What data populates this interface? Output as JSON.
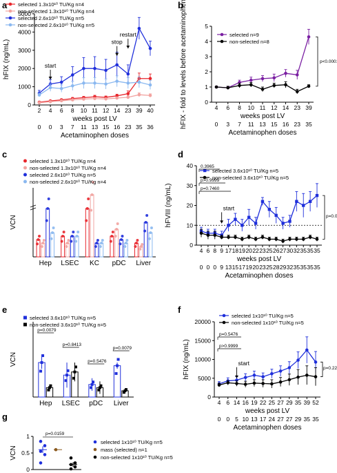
{
  "chart_data": [
    {
      "panel": "a",
      "type": "line",
      "ylabel": "hFIX (ng/mL)",
      "xlabel": "weeks post LV",
      "xlabel2": "Acetaminophen doses",
      "x_ticks": [
        "2",
        "4",
        "6",
        "8",
        "10",
        "11",
        "12",
        "14",
        "23",
        "39",
        "40"
      ],
      "x2_ticks": [
        "0",
        "0",
        "3",
        "7",
        "11",
        "13",
        "15",
        "16",
        "23",
        "35",
        "36"
      ],
      "ylim": [
        0,
        5000
      ],
      "yticks": [
        0,
        1000,
        2000,
        3000,
        4000,
        5000
      ],
      "annotations": [
        {
          "text": "start",
          "x": 1
        },
        {
          "text": "stop",
          "x": 7
        },
        {
          "text": "restart",
          "x": 8
        }
      ],
      "series": [
        {
          "name": "selected 1.3x10¹⁰ TU/Kg n=4",
          "color": "#e8262c",
          "values": [
            150,
            220,
            280,
            350,
            400,
            450,
            420,
            500,
            620,
            1450,
            1450
          ],
          "err": [
            30,
            40,
            50,
            60,
            70,
            80,
            70,
            90,
            150,
            300,
            250
          ]
        },
        {
          "name": "non-selected 1.3x10¹⁰ TU/Kg n=4",
          "color": "#f2a3a0",
          "values": [
            120,
            180,
            230,
            280,
            320,
            350,
            330,
            380,
            420,
            560,
            520
          ],
          "err": [
            20,
            30,
            30,
            40,
            40,
            50,
            40,
            60,
            80,
            100,
            90
          ]
        },
        {
          "name": "selected 2.6x10¹⁰ TU/Kg n=5",
          "color": "#1f2fdb",
          "values": [
            650,
            1150,
            1250,
            1650,
            2000,
            2000,
            1900,
            2200,
            1700,
            4200,
            3100
          ],
          "err": [
            150,
            250,
            300,
            450,
            600,
            650,
            600,
            700,
            500,
            600,
            400
          ]
        },
        {
          "name": "non-selected 2.6x10¹⁰ TU/Kg n=5",
          "color": "#8ab8f0",
          "values": [
            550,
            950,
            900,
            1050,
            1200,
            1200,
            1150,
            1300,
            1200,
            1250,
            1100
          ],
          "err": [
            100,
            200,
            200,
            250,
            300,
            300,
            280,
            300,
            300,
            300,
            250
          ]
        }
      ]
    },
    {
      "panel": "b",
      "type": "line",
      "ylabel": "hFIX - fold to levels before acetaminophen",
      "xlabel": "weeks post LV",
      "xlabel2": "Acetaminophen doses",
      "x_ticks": [
        "4",
        "6",
        "8",
        "10",
        "11",
        "12",
        "14",
        "23",
        "39"
      ],
      "x2_ticks": [
        "0",
        "3",
        "7",
        "11",
        "13",
        "15",
        "16",
        "23",
        "35"
      ],
      "ylim": [
        0,
        5
      ],
      "yticks": [
        0,
        1,
        2,
        3,
        4,
        5
      ],
      "pvalue": "p<0.0001",
      "series": [
        {
          "name": "selected n=9",
          "color": "#7a1fa2",
          "values": [
            1,
            0.95,
            1.3,
            1.45,
            1.55,
            1.6,
            1.9,
            1.8,
            4.3
          ],
          "err": [
            0.05,
            0.1,
            0.15,
            0.2,
            0.2,
            0.25,
            0.25,
            0.3,
            0.5
          ]
        },
        {
          "name": "non-selected n=8",
          "color": "#000000",
          "values": [
            1,
            0.95,
            1.1,
            1.15,
            0.85,
            1.1,
            1.15,
            0.7,
            1.05
          ],
          "err": [
            0.05,
            0.1,
            0.15,
            0.15,
            0.15,
            0.15,
            0.2,
            0.15,
            0.1
          ]
        }
      ]
    },
    {
      "panel": "c",
      "type": "bar",
      "ylabel": "VCN",
      "categories": [
        "Hep",
        "LSEC",
        "KC",
        "pDC",
        "Liver"
      ],
      "ylim": [
        0,
        1
      ],
      "axis_break": true,
      "series": [
        {
          "name": "selected 1.3x10¹⁰ TU/Kg n=4",
          "color": "#e8262c",
          "values": [
            0.25,
            0.3,
            0.7,
            0.3,
            0.2
          ]
        },
        {
          "name": "non-selected 1.3x10¹⁰ TU/Kg n=4",
          "color": "#f2a3a0",
          "values": [
            0.2,
            0.2,
            0.9,
            0.4,
            0.15
          ]
        },
        {
          "name": "selected 2.6x10¹⁰ TU/Kg n=5",
          "color": "#1f2fdb",
          "values": [
            0.7,
            0.3,
            0.2,
            0.25,
            0.5
          ]
        },
        {
          "name": "non-selected 2.6x10¹⁰ TU/Kg n=4",
          "color": "#8ab8f0",
          "values": [
            0.35,
            0.3,
            0.2,
            0.2,
            0.35
          ]
        }
      ]
    },
    {
      "panel": "d",
      "type": "line",
      "ylabel": "hFVIII (ng/mL)",
      "xlabel": "weeks post LV",
      "xlabel2": "Acetaminophen doses",
      "x_ticks": [
        "4",
        "6",
        "8",
        "9",
        "17",
        "18",
        "19",
        "20",
        "22",
        "23",
        "25",
        "26",
        "27",
        "30",
        "32",
        "35",
        "35",
        "35"
      ],
      "x2_ticks": [
        "0",
        "0",
        "0",
        "9",
        "13",
        "15",
        "17",
        "19",
        "20",
        "23",
        "25",
        "28",
        "29",
        "32",
        "35",
        "35",
        "35",
        "35"
      ],
      "ylim": [
        0,
        40
      ],
      "yticks": [
        0,
        10,
        20,
        30,
        40
      ],
      "dotted_line": 10,
      "pvalues": [
        "0.3965",
        "p>0.9999",
        "p=0.7460",
        "p=0.0079"
      ],
      "annotations": [
        {
          "text": "start",
          "x": 3
        }
      ],
      "series": [
        {
          "name": "selected 3.6x10¹⁰ TU/Kg n=5",
          "color": "#1f2fdb",
          "values": [
            7,
            6,
            6,
            5,
            10,
            13,
            10,
            14,
            11,
            22,
            18,
            15,
            11,
            12,
            22,
            20,
            22,
            25
          ],
          "err": [
            2,
            2,
            2,
            2,
            3,
            3,
            3,
            4,
            3,
            2,
            4,
            4,
            3,
            3,
            5,
            6,
            5,
            6
          ]
        },
        {
          "name": "non-selected 3.6x10¹⁰ TU/Kg n=5",
          "color": "#000000",
          "values": [
            6,
            5,
            5,
            4,
            4,
            4,
            3,
            4,
            3,
            4,
            3,
            3,
            2,
            3,
            3,
            3,
            4,
            3
          ],
          "err": [
            2,
            2,
            2,
            1,
            1,
            1,
            1,
            1,
            1,
            1,
            1,
            1,
            1,
            1,
            1,
            1,
            1,
            1
          ]
        }
      ]
    },
    {
      "panel": "e",
      "type": "bar",
      "ylabel": "VCN",
      "categories": [
        "Hep",
        "LSEC",
        "pDC",
        "Liver"
      ],
      "ylim": [
        0,
        1.2
      ],
      "pvalues": [
        "p=0.0079",
        "p=0.8413",
        "p=0.5476",
        "p=0.0079"
      ],
      "series": [
        {
          "name": "selected 3.6x10¹⁰ TU/Kg n=5",
          "color": "#1f2fdb",
          "values": [
            0.55,
            0.35,
            0.2,
            0.5
          ],
          "err": [
            0.1,
            0.2,
            0.1,
            0.05
          ]
        },
        {
          "name": "non-selected 3.6x10¹⁰ TU/Kg n=5",
          "color": "#000000",
          "values": [
            0.15,
            0.4,
            0.15,
            0.1
          ],
          "err": [
            0.05,
            0.15,
            0.1,
            0.02
          ]
        }
      ]
    },
    {
      "panel": "f",
      "type": "line",
      "ylabel": "hFIX (ng/mL)",
      "xlabel": "weeks post LV",
      "xlabel2": "Acetaminophen doses",
      "x_ticks": [
        "4",
        "6",
        "14",
        "16",
        "19",
        "22",
        "25",
        "27",
        "29",
        "35",
        "39",
        "52"
      ],
      "x2_ticks": [
        "0",
        "0",
        "5",
        "10",
        "13",
        "17",
        "24",
        "27",
        "27",
        "29",
        "35",
        "35"
      ],
      "ylim": [
        0,
        20000
      ],
      "yticks": [
        0,
        5000,
        10000,
        15000,
        20000
      ],
      "pvalues": [
        "p=0.5476",
        "p>0.9999",
        "p=0.2222"
      ],
      "annotations": [
        {
          "text": "start",
          "x": 2
        }
      ],
      "series": [
        {
          "name": "selected 1x10¹⁰ TU/Kg n=5",
          "color": "#1f2fdb",
          "values": [
            3500,
            4300,
            4500,
            5200,
            5800,
            5400,
            6200,
            6900,
            7800,
            9800,
            12500,
            9300
          ],
          "err": [
            600,
            800,
            900,
            1000,
            1100,
            1000,
            1200,
            1400,
            1600,
            2200,
            3500,
            2800
          ]
        },
        {
          "name": "non-selected 1x10¹⁰ TU/Kg n=5",
          "color": "#000000",
          "values": [
            3200,
            3800,
            3600,
            3400,
            3700,
            3600,
            3500,
            4000,
            4600,
            5300,
            5800,
            5400
          ],
          "err": [
            500,
            600,
            700,
            800,
            900,
            1000,
            1100,
            1200,
            1500,
            2000,
            2500,
            2400
          ]
        }
      ]
    },
    {
      "panel": "g",
      "type": "scatter",
      "ylabel": "VCN",
      "ylim": [
        0,
        1
      ],
      "yticks": [
        0,
        0.5,
        1
      ],
      "pvalue": "p=0.0159",
      "series": [
        {
          "name": "selected 1x10¹⁰ TU/Kg n=5",
          "color": "#1f2fdb",
          "values": [
            0.85,
            0.72,
            0.55,
            0.45,
            0.2
          ],
          "mean": 0.6,
          "sem": 0.1
        },
        {
          "name": "mass (selected) n=1",
          "color": "#8b5a1e",
          "values": [
            0.6
          ],
          "mean": 0.6,
          "sem": 0
        },
        {
          "name": "non-selected 1x10¹⁰ TU/Kg n=5",
          "color": "#000000",
          "values": [
            0.35,
            0.2,
            0.15,
            0.08,
            0.02
          ],
          "mean": 0.15,
          "sem": 0.07
        }
      ]
    }
  ]
}
